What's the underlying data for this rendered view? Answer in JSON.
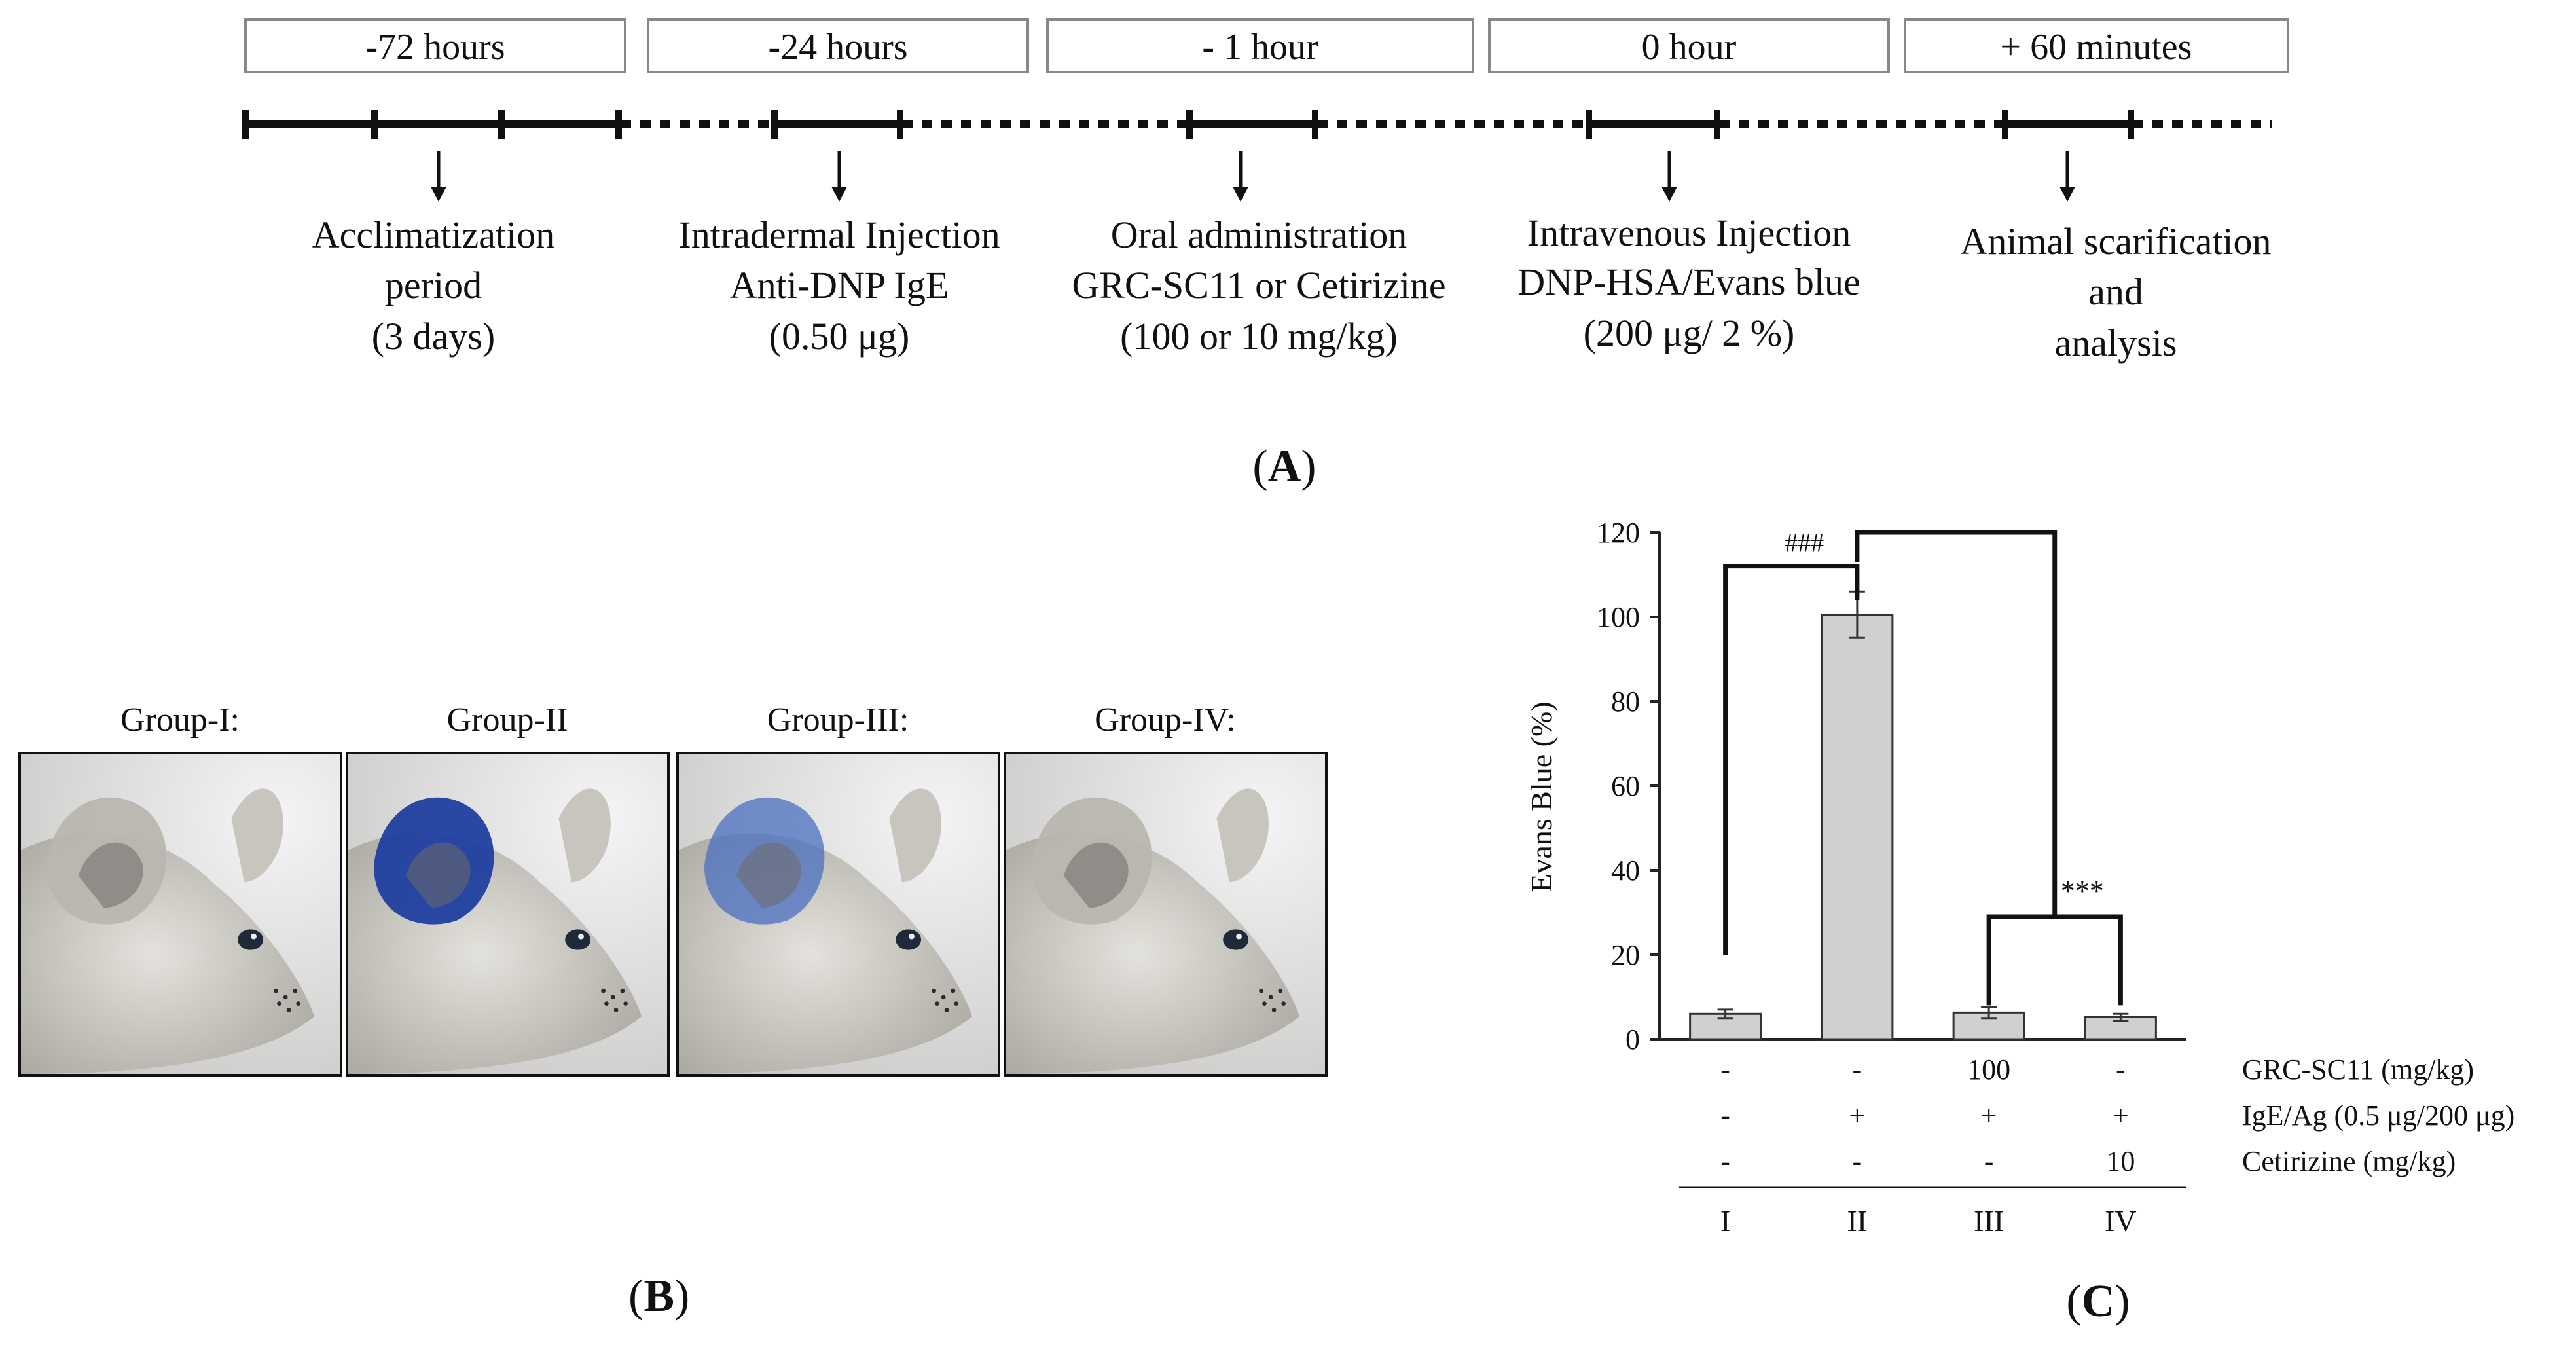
{
  "panel_a": {
    "letter": "A",
    "time_points": [
      "-72 hours",
      "-24 hours",
      "- 1 hour",
      "0 hour",
      "+ 60 minutes"
    ],
    "steps": [
      [
        "Acclimatization",
        "period",
        "(3 days)"
      ],
      [
        "Intradermal Injection",
        "Anti-DNP IgE",
        "(0.50 μg)"
      ],
      [
        "Oral administration",
        "GRC-SC11 or Cetirizine",
        "(100 or 10 mg/kg)"
      ],
      [
        "Intravenous  Injection",
        "DNP-HSA/Evans blue",
        "(200 μg/ 2 %)"
      ],
      [
        "Animal scarification",
        "and",
        "analysis"
      ]
    ]
  },
  "panel_b": {
    "letter": "B",
    "groups": [
      "Group-I:",
      "Group-II",
      "Group-III:",
      "Group-IV:"
    ],
    "ear_stain": [
      "none",
      "heavy",
      "light",
      "none"
    ]
  },
  "panel_c": {
    "letter": "C",
    "row_labels": [
      "GRC-SC11 (mg/kg)",
      "IgE/Ag (0.5 μg/200 μg)",
      "Cetirizine (mg/kg)"
    ],
    "treatment_table": [
      [
        "-",
        "-",
        "100",
        "-"
      ],
      [
        "-",
        "+",
        "+",
        "+"
      ],
      [
        "-",
        "-",
        "-",
        "10"
      ]
    ],
    "sig_labels": [
      "###",
      "***"
    ],
    "colors": {
      "bar_fill": "#d0d0d0",
      "bar_stroke": "#333333",
      "stain_heavy": "#1f3fa0",
      "stain_light": "#4a6fc0"
    }
  },
  "chart_data": {
    "type": "bar",
    "categories": [
      "I",
      "II",
      "III",
      "IV"
    ],
    "values": [
      6,
      100.5,
      6.3,
      5.2
    ],
    "errors": [
      1,
      5.5,
      1.3,
      0.8
    ],
    "ylabel": "Evans Blue (%)",
    "xlabel": "",
    "ylim": [
      0,
      120
    ],
    "yticks": [
      0,
      20,
      40,
      60,
      80,
      100,
      120
    ],
    "grid": false,
    "legend": "none"
  }
}
